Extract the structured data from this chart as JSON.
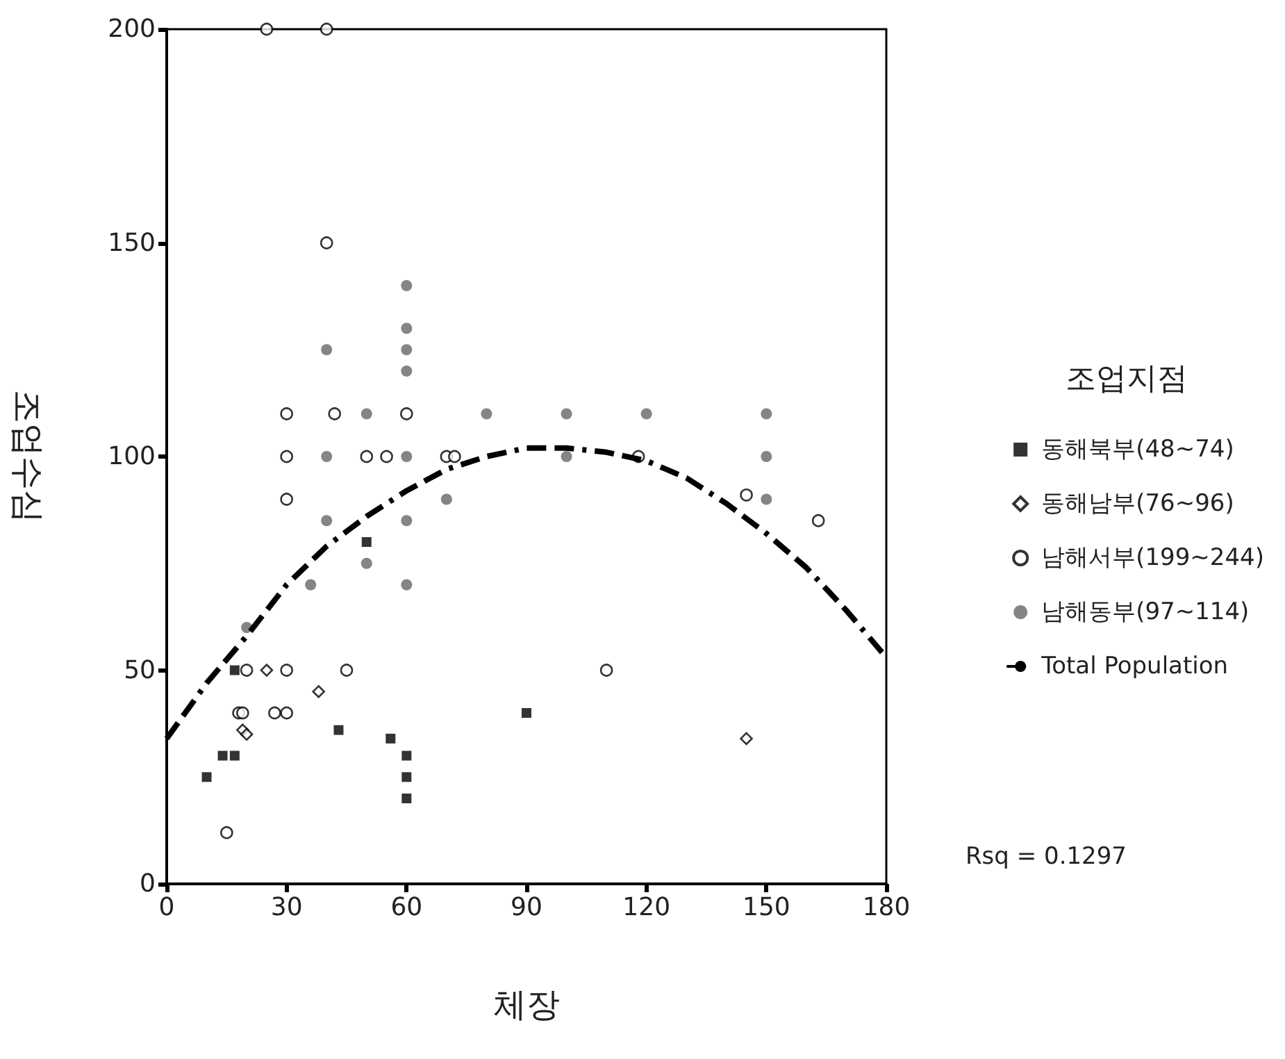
{
  "chart_data": {
    "type": "scatter",
    "xlabel": "체장",
    "ylabel": "조업수심",
    "legend_title": "조업지점",
    "xlim": [
      0,
      180
    ],
    "xticks": [
      0,
      30,
      60,
      90,
      120,
      150,
      180
    ],
    "ylim": [
      0,
      200
    ],
    "yticks": [
      0,
      50,
      100,
      150,
      200
    ],
    "grid": false,
    "legend": "right",
    "annotations": [
      "Rsq = 0.1297"
    ],
    "series": [
      {
        "name": "동해북부(48~74)",
        "color": "#000000",
        "marker": "square",
        "x": [
          10,
          14,
          17,
          17,
          43,
          56,
          60,
          60,
          60,
          50,
          90
        ],
        "values": [
          25,
          30,
          30,
          50,
          36,
          34,
          30,
          25,
          20,
          80,
          40
        ]
      },
      {
        "name": "동해남부(76~96)",
        "color": "#000000",
        "marker": "diamond",
        "x": [
          25,
          38,
          19,
          20,
          145
        ],
        "values": [
          50,
          45,
          36,
          35,
          34
        ]
      },
      {
        "name": "남해서부(199~244)",
        "color": "#000000",
        "marker": "circle",
        "x": [
          25,
          40,
          40,
          30,
          42,
          60,
          30,
          50,
          55,
          70,
          72,
          118,
          30,
          20,
          30,
          45,
          18,
          19,
          27,
          30,
          15,
          145,
          163,
          110
        ],
        "values": [
          200,
          200,
          150,
          110,
          110,
          110,
          100,
          100,
          100,
          100,
          100,
          100,
          90,
          50,
          50,
          50,
          40,
          40,
          40,
          40,
          12,
          91,
          85,
          50
        ]
      },
      {
        "name": "남해동부(97~114)",
        "color": "#666666",
        "marker": "circle",
        "x": [
          60,
          60,
          60,
          60,
          40,
          50,
          80,
          100,
          120,
          150,
          40,
          60,
          100,
          150,
          40,
          60,
          70,
          150,
          50,
          36,
          60,
          20
        ],
        "values": [
          140,
          130,
          125,
          120,
          125,
          110,
          110,
          110,
          110,
          110,
          100,
          100,
          100,
          100,
          85,
          85,
          90,
          90,
          75,
          70,
          70,
          60
        ]
      },
      {
        "name": "Total Population",
        "type": "line",
        "color": "#000000",
        "marker": "none",
        "line_style": "dashed",
        "x": [
          0,
          10,
          20,
          30,
          40,
          50,
          60,
          70,
          80,
          90,
          100,
          110,
          120,
          130,
          140,
          150,
          160,
          170,
          180
        ],
        "values": [
          34,
          47,
          58,
          70,
          79,
          86,
          92,
          97,
          100,
          102,
          102,
          101,
          99,
          95,
          89,
          82,
          74,
          64,
          53
        ]
      }
    ]
  }
}
